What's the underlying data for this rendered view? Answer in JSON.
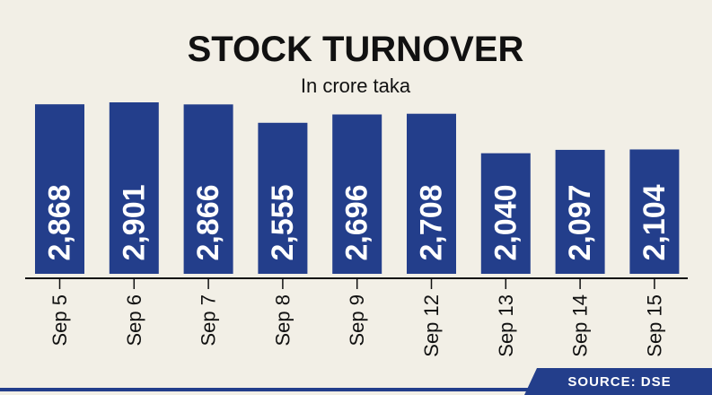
{
  "chart_data": {
    "type": "bar",
    "title": "STOCK TURNOVER",
    "subtitle": "In crore taka",
    "categories": [
      "Sep 5",
      "Sep 6",
      "Sep 7",
      "Sep 8",
      "Sep 9",
      "Sep 12",
      "Sep 13",
      "Sep 14",
      "Sep 15"
    ],
    "values": [
      2868,
      2901,
      2866,
      2555,
      2696,
      2708,
      2040,
      2097,
      2104
    ],
    "value_labels": [
      "2,868",
      "2,901",
      "2,866",
      "2,555",
      "2,696",
      "2,708",
      "2,040",
      "2,097",
      "2,104"
    ],
    "ylim": [
      0,
      2901
    ],
    "grid": false,
    "legend": "none",
    "bar_color": "#233e8b"
  },
  "source": "SOURCE: DSE",
  "colors": {
    "background": "#f2efe6",
    "bar": "#233e8b",
    "footer": "#233e8b",
    "text": "#111111"
  }
}
